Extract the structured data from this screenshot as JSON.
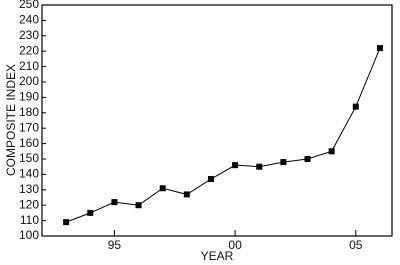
{
  "chart_data": {
    "type": "line",
    "x_label": "YEAR",
    "y_label": "COMPOSITE INDEX",
    "x": [
      1993,
      1994,
      1995,
      1996,
      1997,
      1998,
      1999,
      2000,
      2001,
      2002,
      2003,
      2004,
      2005,
      2006
    ],
    "series": [
      {
        "color": "#000000",
        "values": [
          109,
          115,
          122,
          120,
          131,
          127,
          137,
          146,
          145,
          148,
          150,
          155,
          184,
          222
        ]
      }
    ],
    "xlim": [
      1992,
      2006.5
    ],
    "xticks": [
      {
        "value": 1995,
        "label": "95"
      },
      {
        "value": 2000,
        "label": "00"
      },
      {
        "value": 2005,
        "label": "05"
      }
    ],
    "ylim": [
      100,
      250
    ],
    "yticks": [
      100,
      110,
      120,
      130,
      140,
      150,
      160,
      170,
      180,
      190,
      200,
      210,
      220,
      230,
      240,
      250
    ],
    "grid": false
  }
}
